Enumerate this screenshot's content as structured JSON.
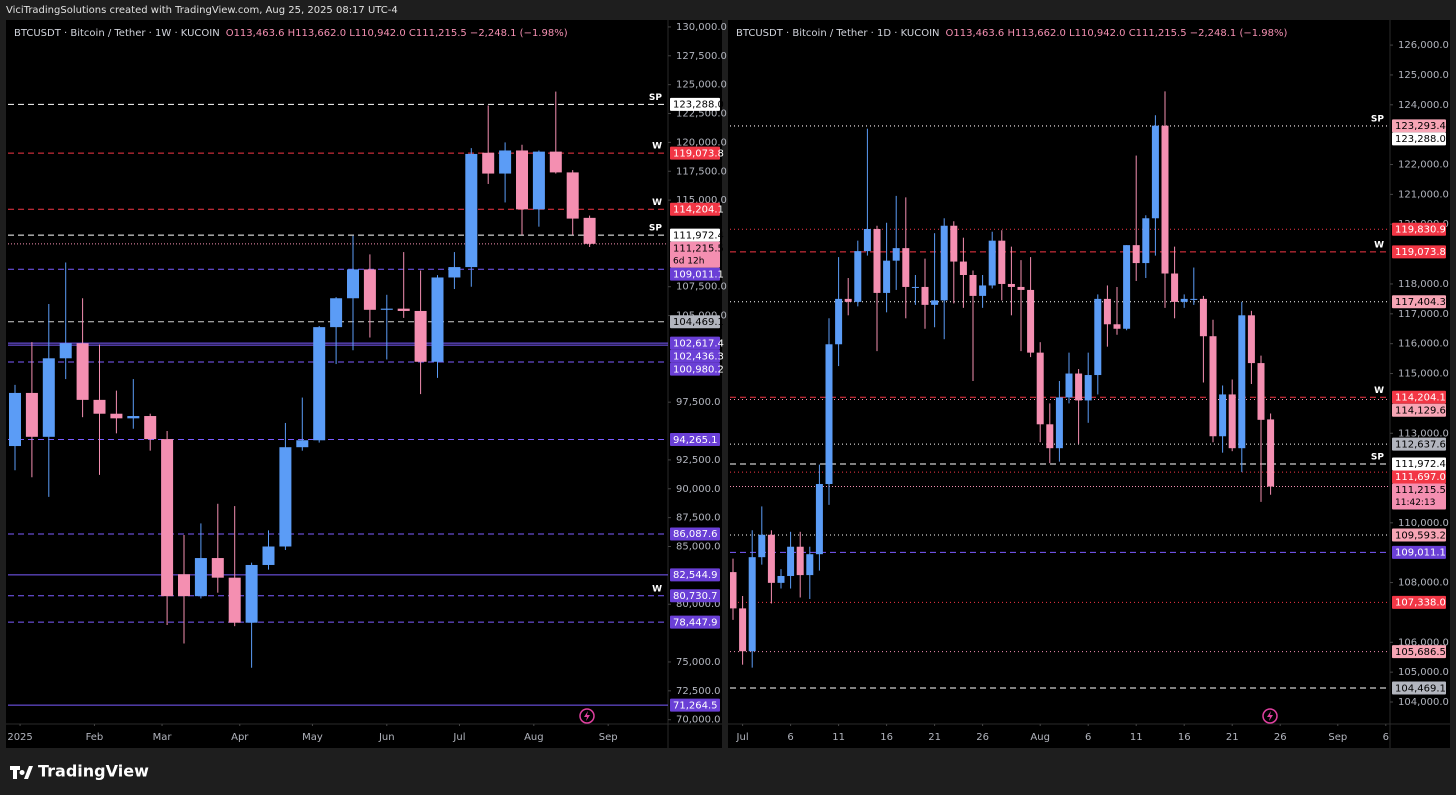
{
  "header": {
    "text": "ViciTradingSolutions created with TradingView.com, Aug 25, 2025 08:17 UTC-4"
  },
  "footer": {
    "brand": "TradingView"
  },
  "chart_data": [
    {
      "type": "candlestick",
      "symbol": "BTCUSDT · Bitcoin / Tether · 1W · KUCOIN",
      "ohlc_text": "O113,463.6 H113,662.0 L110,942.0 C111,215.5 −2,248.1 (−1.98%)",
      "up_color": "#5b9cf6",
      "down_color": "#f48fb1",
      "open": [
        93700,
        98300,
        94500,
        101300,
        102600,
        97700,
        96500,
        96100,
        96300,
        94300,
        82600,
        80700,
        84000,
        82300,
        78400,
        83400,
        85000,
        93600,
        94200,
        104000,
        106500,
        109000,
        105500,
        105600,
        105400,
        101000,
        108300,
        109200,
        119100,
        117300,
        119300,
        114200,
        119200,
        117400,
        113463.6
      ],
      "high": [
        99000,
        102700,
        106000,
        109600,
        106500,
        102500,
        98500,
        99500,
        96500,
        95000,
        86000,
        87000,
        88700,
        88500,
        83600,
        86400,
        95700,
        97900,
        104100,
        106600,
        111900,
        110300,
        106800,
        110500,
        108900,
        108500,
        110500,
        119500,
        123200,
        120000,
        119800,
        119300,
        124400,
        117600,
        113662
      ],
      "low": [
        91600,
        91000,
        89300,
        99500,
        96200,
        91200,
        94800,
        95200,
        93300,
        78200,
        76600,
        80500,
        81000,
        78100,
        74500,
        83000,
        84700,
        93300,
        94000,
        100800,
        102000,
        103100,
        101200,
        104800,
        98200,
        99600,
        107300,
        107500,
        116400,
        114800,
        112000,
        112700,
        117300,
        112000,
        110942
      ],
      "close": [
        98300,
        94500,
        101300,
        102600,
        97700,
        96500,
        96100,
        96300,
        94300,
        80700,
        80700,
        84000,
        82300,
        78400,
        83400,
        85000,
        93600,
        94200,
        104000,
        106500,
        109000,
        105500,
        105600,
        105400,
        101000,
        108300,
        109200,
        119000,
        117300,
        119300,
        114200,
        119200,
        117400,
        113400,
        111215.5
      ],
      "ylim": [
        69800,
        130600
      ],
      "yticks": [
        {
          "value": 130000,
          "label": "130,000.0"
        },
        {
          "value": 127500,
          "label": "127,500.0"
        },
        {
          "value": 125000,
          "label": "125,000.0"
        },
        {
          "value": 122500,
          "label": "122,500.0"
        },
        {
          "value": 120000,
          "label": "120,000.0"
        },
        {
          "value": 117500,
          "label": "117,500.0"
        },
        {
          "value": 115000,
          "label": "115,000.0"
        },
        {
          "value": 107500,
          "label": "107,500.0"
        },
        {
          "value": 105000,
          "label": "105,000.0"
        },
        {
          "value": 97500,
          "label": "97,500.0"
        },
        {
          "value": 92500,
          "label": "92,500.0"
        },
        {
          "value": 90000,
          "label": "90,000.0"
        },
        {
          "value": 87500,
          "label": "87,500.0"
        },
        {
          "value": 85000,
          "label": "85,000.0"
        },
        {
          "value": 80000,
          "label": "80,000.0"
        },
        {
          "value": 75000,
          "label": "75,000.0"
        },
        {
          "value": 72500,
          "label": "72,500.0"
        },
        {
          "value": 70000,
          "label": "70,000.0"
        }
      ],
      "xticks": [
        {
          "value": 0.3,
          "label": "2025"
        },
        {
          "value": 4.7,
          "label": "Feb"
        },
        {
          "value": 8.7,
          "label": "Mar"
        },
        {
          "value": 13.3,
          "label": "Apr"
        },
        {
          "value": 17.6,
          "label": "May"
        },
        {
          "value": 22.0,
          "label": "Jun"
        },
        {
          "value": 26.3,
          "label": "Jul"
        },
        {
          "value": 30.7,
          "label": "Aug"
        },
        {
          "value": 35.1,
          "label": "Sep"
        }
      ],
      "grid": false,
      "levels": [
        {
          "value": 123288.0,
          "label": "123,288.0",
          "tag": "SP",
          "line": "#ffffff",
          "style": "dashed",
          "bg": "#ffffff",
          "fg": "#000000"
        },
        {
          "value": 119073.8,
          "label": "119,073.8",
          "tag": "W",
          "line": "#f23645",
          "style": "dashed",
          "bg": "#f23645",
          "fg": "#ffffff"
        },
        {
          "value": 114204.1,
          "label": "114,204.1",
          "tag": "W",
          "line": "#f23645",
          "style": "dashed",
          "bg": "#f23645",
          "fg": "#ffffff"
        },
        {
          "value": 111972.4,
          "label": "111,972.4",
          "tag": "SP",
          "line": "#ffffff",
          "style": "dashed",
          "bg": "#ffffff",
          "fg": "#000000"
        },
        {
          "value": 109011.1,
          "label": "109,011.1",
          "line": "#7b5cff",
          "style": "dashed",
          "bg": "#6a3fd6",
          "fg": "#ffffff"
        },
        {
          "value": 104469.1,
          "label": "104,469.1",
          "line": "#d0d0d0",
          "style": "dashed",
          "bg": "#b2b5be",
          "fg": "#000000"
        },
        {
          "value": 102617.4,
          "label": "102,617.4",
          "line": "#7b5cff",
          "style": "solid",
          "bg": "#6a3fd6",
          "fg": "#ffffff"
        },
        {
          "value": 102436.3,
          "label": "102,436.3",
          "line": "#7b5cff",
          "style": "solid",
          "bg": "#6a3fd6",
          "fg": "#ffffff"
        },
        {
          "value": 100980.2,
          "label": "100,980.2",
          "line": "#7b5cff",
          "style": "dashed",
          "bg": "#6a3fd6",
          "fg": "#ffffff"
        },
        {
          "value": 94265.1,
          "label": "94,265.1",
          "line": "#7b5cff",
          "style": "dashed",
          "bg": "#6a3fd6",
          "fg": "#ffffff"
        },
        {
          "value": 86087.6,
          "label": "86,087.6",
          "line": "#7b5cff",
          "style": "dashed",
          "bg": "#6a3fd6",
          "fg": "#ffffff"
        },
        {
          "value": 82544.9,
          "label": "82,544.9",
          "line": "#7b5cff",
          "style": "solid",
          "bg": "#6a3fd6",
          "fg": "#ffffff"
        },
        {
          "value": 80730.7,
          "label": "80,730.7",
          "tag": "W",
          "line": "#7b5cff",
          "style": "dashed",
          "bg": "#6a3fd6",
          "fg": "#ffffff"
        },
        {
          "value": 78447.9,
          "label": "78,447.9",
          "line": "#7b5cff",
          "style": "dashed",
          "bg": "#6a3fd6",
          "fg": "#ffffff"
        },
        {
          "value": 71264.5,
          "label": "71,264.5",
          "line": "#7b5cff",
          "style": "solid",
          "bg": "#6a3fd6",
          "fg": "#ffffff"
        }
      ],
      "last": {
        "value": 111215.5,
        "label": "111,215.5",
        "countdown": "6d 12h",
        "color": "#f48fb1"
      }
    },
    {
      "type": "candlestick",
      "symbol": "BTCUSDT · Bitcoin / Tether · 1D · KUCOIN",
      "ohlc_text": "O113,463.6 H113,662.0 L110,942.0 C111,215.5 −2,248.1 (−1.98%)",
      "up_color": "#5b9cf6",
      "down_color": "#f48fb1",
      "open": [
        108350,
        107135,
        105700,
        108850,
        109600,
        107990,
        108220,
        109200,
        108250,
        108950,
        111300,
        115980,
        117500,
        117400,
        119100,
        119840,
        117700,
        118780,
        119200,
        117900,
        117900,
        117300,
        117450,
        119950,
        118750,
        118300,
        117600,
        117950,
        119450,
        118000,
        117900,
        117800,
        115700,
        113300,
        112500,
        114200,
        115000,
        114100,
        114950,
        117500,
        116650,
        116500,
        119300,
        118700,
        120200,
        123300,
        118350,
        117400,
        117500,
        117500,
        116250,
        112900,
        114300,
        112500,
        116950,
        115350,
        113463.6
      ],
      "high": [
        108800,
        107550,
        109750,
        110550,
        109750,
        108450,
        109700,
        109700,
        109200,
        111950,
        116850,
        118900,
        118200,
        119450,
        123200,
        119950,
        120050,
        120950,
        120900,
        118300,
        118850,
        119700,
        120200,
        120100,
        119550,
        118450,
        118300,
        119750,
        119800,
        119250,
        118800,
        118900,
        116050,
        114000,
        114750,
        115700,
        115150,
        115700,
        117650,
        117950,
        117900,
        119300,
        122300,
        120300,
        123650,
        124450,
        119250,
        117650,
        118550,
        117600,
        116800,
        114600,
        114800,
        117400,
        117100,
        115600,
        113662
      ],
      "low": [
        106750,
        105250,
        105150,
        108600,
        107300,
        107800,
        107800,
        107500,
        107450,
        108400,
        110600,
        115250,
        116950,
        117250,
        118950,
        115750,
        117050,
        117800,
        116850,
        117300,
        116500,
        116550,
        116150,
        117350,
        117200,
        114750,
        117200,
        117850,
        117450,
        116950,
        115750,
        115550,
        112700,
        112000,
        112050,
        114000,
        112650,
        113350,
        114300,
        115900,
        116300,
        116450,
        118100,
        118200,
        118950,
        117200,
        116850,
        117200,
        117300,
        114700,
        112700,
        112350,
        112400,
        111700,
        114650,
        110700,
        110942
      ],
      "close": [
        107135,
        105700,
        108850,
        109600,
        107990,
        108220,
        109200,
        108250,
        108950,
        111300,
        115980,
        117500,
        117400,
        119100,
        119840,
        117700,
        118780,
        119200,
        117900,
        117900,
        117300,
        117450,
        119950,
        118750,
        118300,
        117600,
        117950,
        119450,
        118000,
        117900,
        117800,
        115700,
        113300,
        112500,
        114200,
        115000,
        114100,
        114950,
        117500,
        116650,
        116500,
        119300,
        118700,
        120200,
        123300,
        118350,
        117400,
        117500,
        117500,
        116250,
        112900,
        114300,
        112500,
        116950,
        115350,
        113450,
        111215.5
      ],
      "ylim": [
        103330,
        126840
      ],
      "yticks": [
        {
          "value": 126000,
          "label": "126,000.0"
        },
        {
          "value": 125000,
          "label": "125,000.0"
        },
        {
          "value": 124000,
          "label": "124,000.0"
        },
        {
          "value": 122000,
          "label": "122,000.0"
        },
        {
          "value": 121000,
          "label": "121,000.0"
        },
        {
          "value": 120000,
          "label": "120,000.0"
        },
        {
          "value": 118000,
          "label": "118,000.0"
        },
        {
          "value": 117000,
          "label": "117,000.0"
        },
        {
          "value": 116000,
          "label": "116,000.0"
        },
        {
          "value": 115000,
          "label": "115,000.0"
        },
        {
          "value": 113000,
          "label": "113,000.0"
        },
        {
          "value": 110000,
          "label": "110,000.0"
        },
        {
          "value": 108000,
          "label": "108,000.0"
        },
        {
          "value": 106000,
          "label": "106,000.0"
        },
        {
          "value": 105000,
          "label": "105,000.0"
        },
        {
          "value": 104000,
          "label": "104,000.0"
        }
      ],
      "xticks": [
        {
          "value": 1,
          "label": "Jul"
        },
        {
          "value": 6,
          "label": "6"
        },
        {
          "value": 11,
          "label": "11"
        },
        {
          "value": 16,
          "label": "16"
        },
        {
          "value": 21,
          "label": "21"
        },
        {
          "value": 26,
          "label": "26"
        },
        {
          "value": 32,
          "label": "Aug"
        },
        {
          "value": 37,
          "label": "6"
        },
        {
          "value": 42,
          "label": "11"
        },
        {
          "value": 47,
          "label": "16"
        },
        {
          "value": 52,
          "label": "21"
        },
        {
          "value": 57,
          "label": "26"
        },
        {
          "value": 63,
          "label": "Sep"
        },
        {
          "value": 68,
          "label": "6"
        }
      ],
      "grid": false,
      "levels": [
        {
          "value": 123293.4,
          "label": "123,293.4",
          "line": "#f48fb1",
          "style": "dotted",
          "bg": "#f7a5b5",
          "fg": "#000000"
        },
        {
          "value": 123288.0,
          "label": "123,288.0",
          "tag": "SP",
          "line": "#ffffff",
          "style": "dotted",
          "bg": "#ffffff",
          "fg": "#000000"
        },
        {
          "value": 119830.9,
          "label": "119,830.9",
          "line": "#f23645",
          "style": "dotted",
          "bg": "#f23645",
          "fg": "#ffffff"
        },
        {
          "value": 119073.8,
          "label": "119,073.8",
          "tag": "W",
          "line": "#f23645",
          "style": "dashed",
          "bg": "#f23645",
          "fg": "#ffffff"
        },
        {
          "value": 117404.3,
          "label": "117,404.3",
          "line": "#ffffff",
          "style": "dotted",
          "bg": "#f7a5b5",
          "fg": "#000000"
        },
        {
          "value": 114204.1,
          "label": "114,204.1",
          "tag": "W",
          "line": "#f23645",
          "style": "dashed",
          "bg": "#f23645",
          "fg": "#ffffff"
        },
        {
          "value": 114129.6,
          "label": "114,129.6",
          "line": "#f48fb1",
          "style": "dotted",
          "bg": "#f7a5b5",
          "fg": "#000000"
        },
        {
          "value": 112637.6,
          "label": "112,637.6",
          "line": "#ffffff",
          "style": "dotted",
          "bg": "#b2b5be",
          "fg": "#000000"
        },
        {
          "value": 111972.4,
          "label": "111,972.4",
          "tag": "SP",
          "line": "#ffffff",
          "style": "dashed",
          "bg": "#ffffff",
          "fg": "#000000"
        },
        {
          "value": 111697.0,
          "label": "111,697.0",
          "line": "#f23645",
          "style": "dotted",
          "bg": "#f23645",
          "fg": "#ffffff"
        },
        {
          "value": 109593.2,
          "label": "109,593.2",
          "line": "#ffffff",
          "style": "dotted",
          "bg": "#f7a5b5",
          "fg": "#000000"
        },
        {
          "value": 109011.1,
          "label": "109,011.1",
          "line": "#7b5cff",
          "style": "dashed",
          "bg": "#6a3fd6",
          "fg": "#ffffff"
        },
        {
          "value": 107338.0,
          "label": "107,338.0",
          "line": "#f23645",
          "style": "dotted",
          "bg": "#f23645",
          "fg": "#ffffff"
        },
        {
          "value": 105686.5,
          "label": "105,686.5",
          "line": "#f48fb1",
          "style": "dotted",
          "bg": "#f7a5b5",
          "fg": "#000000"
        },
        {
          "value": 104469.1,
          "label": "104,469.1",
          "line": "#ffffff",
          "style": "dashed",
          "bg": "#b2b5be",
          "fg": "#000000"
        }
      ],
      "last": {
        "value": 111215.5,
        "label": "111,215.5",
        "countdown": "11:42:13",
        "color": "#f48fb1"
      }
    }
  ]
}
